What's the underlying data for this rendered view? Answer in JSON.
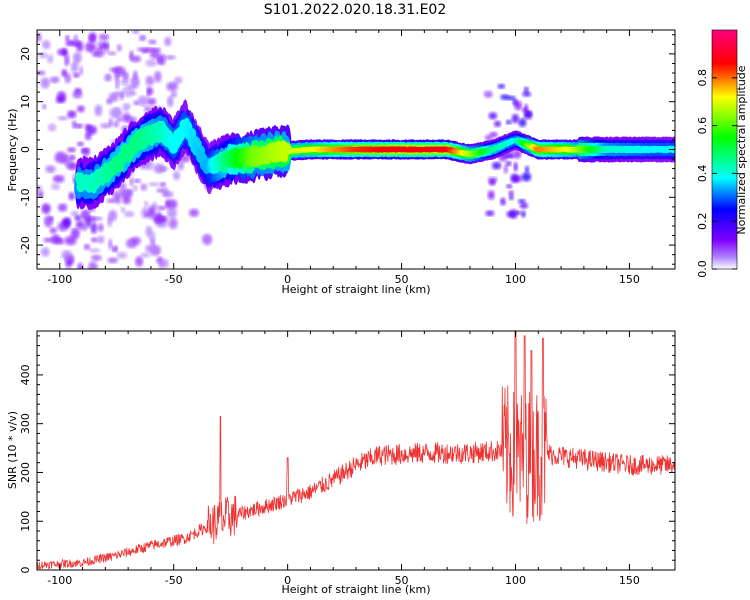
{
  "title": "S101.2022.020.18.31.E02",
  "chart_data": [
    {
      "type": "heatmap",
      "xlabel": "Height of straight line (km)",
      "ylabel": "Frequency (Hz)",
      "xlim": [
        -110,
        170
      ],
      "ylim": [
        -25,
        25
      ],
      "xticks": [
        -100,
        -50,
        0,
        50,
        100,
        150
      ],
      "yticks": [
        -20,
        -10,
        0,
        10,
        20
      ],
      "colorbar": {
        "label": "Normalized spectral amplitude",
        "range": [
          0,
          1
        ],
        "ticks": [
          "0.0",
          "0.2",
          "0.4",
          "0.6",
          "0.8"
        ],
        "colormap": [
          "#ffffff",
          "#8000ff",
          "#0000ff",
          "#00ffff",
          "#00ff00",
          "#ffff00",
          "#ff0000",
          "#ff0080"
        ]
      },
      "ridge": [
        {
          "x": -85,
          "f": -7,
          "amp": 0.45
        },
        {
          "x": -75,
          "f": -3,
          "amp": 0.5
        },
        {
          "x": -65,
          "f": 2,
          "amp": 0.5
        },
        {
          "x": -55,
          "f": 4,
          "amp": 0.45
        },
        {
          "x": -50,
          "f": 1,
          "amp": 0.4
        },
        {
          "x": -45,
          "f": 5,
          "amp": 0.4
        },
        {
          "x": -35,
          "f": -4,
          "amp": 0.35
        },
        {
          "x": -25,
          "f": -2,
          "amp": 0.55
        },
        {
          "x": -15,
          "f": -1.5,
          "amp": 0.7
        },
        {
          "x": -5,
          "f": -0.5,
          "amp": 0.75
        },
        {
          "x": 10,
          "f": 0,
          "amp": 0.8
        },
        {
          "x": 30,
          "f": 0,
          "amp": 0.95
        },
        {
          "x": 50,
          "f": 0,
          "amp": 1.0
        },
        {
          "x": 70,
          "f": 0,
          "amp": 1.0
        },
        {
          "x": 80,
          "f": -1,
          "amp": 0.75
        },
        {
          "x": 90,
          "f": 0,
          "amp": 0.5
        },
        {
          "x": 100,
          "f": 2,
          "amp": 0.4
        },
        {
          "x": 110,
          "f": 0,
          "amp": 0.9
        },
        {
          "x": 125,
          "f": 0,
          "amp": 0.8
        },
        {
          "x": 140,
          "f": 0,
          "amp": 0.45
        },
        {
          "x": 160,
          "f": 0,
          "amp": 0.4
        },
        {
          "x": 170,
          "f": 0,
          "amp": 0.4
        }
      ]
    },
    {
      "type": "line",
      "xlabel": "Height of straight line (km)",
      "ylabel": "SNR (10 * v/v)",
      "xlim": [
        -110,
        170
      ],
      "ylim": [
        0,
        490
      ],
      "xticks": [
        -100,
        -50,
        0,
        50,
        100,
        150
      ],
      "yticks": [
        0,
        100,
        200,
        300,
        400
      ],
      "color": "#ee3333",
      "envelope": [
        {
          "x": -110,
          "y": 10
        },
        {
          "x": -90,
          "y": 15
        },
        {
          "x": -75,
          "y": 30
        },
        {
          "x": -60,
          "y": 50
        },
        {
          "x": -45,
          "y": 65
        },
        {
          "x": -35,
          "y": 90
        },
        {
          "x": -25,
          "y": 110
        },
        {
          "x": -10,
          "y": 130
        },
        {
          "x": 0,
          "y": 145
        },
        {
          "x": 10,
          "y": 160
        },
        {
          "x": 20,
          "y": 185
        },
        {
          "x": 30,
          "y": 215
        },
        {
          "x": 40,
          "y": 235
        },
        {
          "x": 60,
          "y": 240
        },
        {
          "x": 80,
          "y": 240
        },
        {
          "x": 95,
          "y": 245
        },
        {
          "x": 100,
          "y": 230
        },
        {
          "x": 112,
          "y": 240
        },
        {
          "x": 125,
          "y": 230
        },
        {
          "x": 150,
          "y": 215
        },
        {
          "x": 170,
          "y": 215
        }
      ],
      "peaks": [
        {
          "x": -29.5,
          "y": 315
        },
        {
          "x": 0,
          "y": 230
        },
        {
          "x": 100,
          "y": 490
        },
        {
          "x": 104,
          "y": 480
        },
        {
          "x": 107,
          "y": 450
        },
        {
          "x": 112,
          "y": 475
        }
      ]
    }
  ]
}
